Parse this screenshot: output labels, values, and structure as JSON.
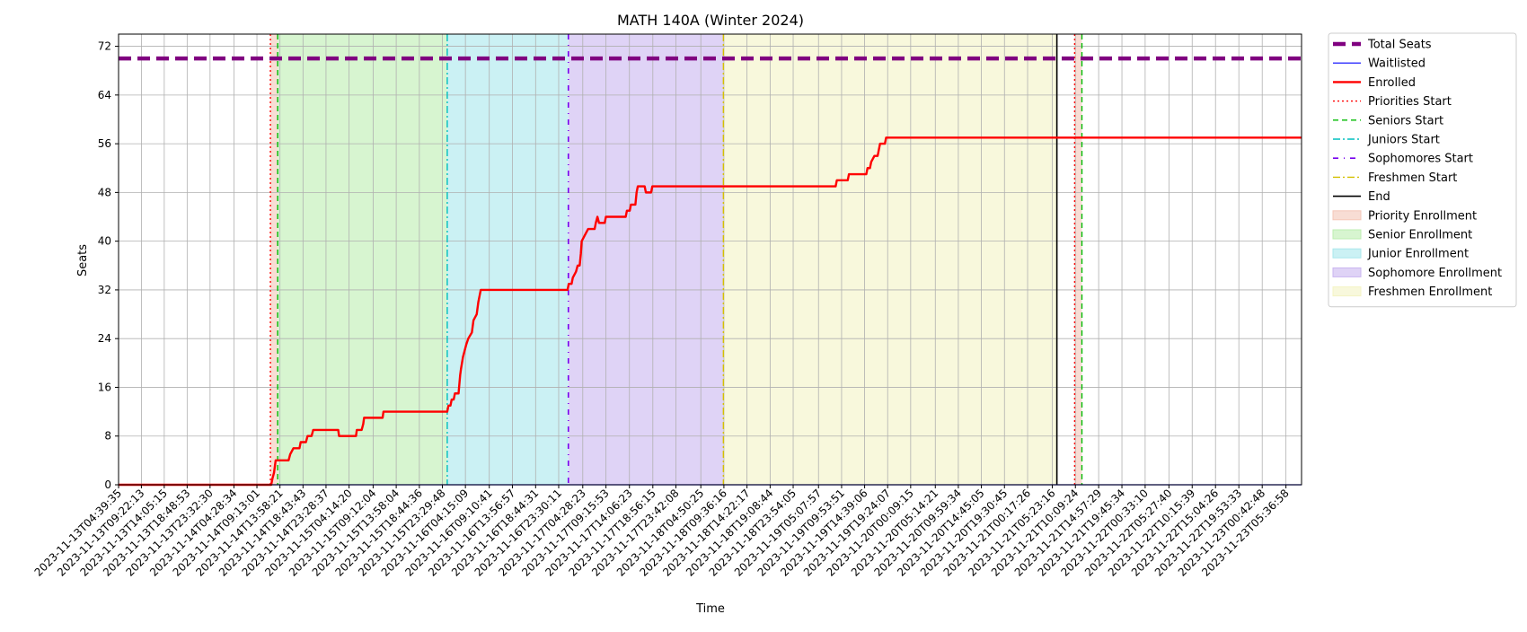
{
  "chart_data": {
    "type": "line",
    "title": "MATH 140A (Winter 2024)",
    "xlabel": "Time",
    "ylabel": "Seats",
    "ylim": [
      0,
      74
    ],
    "yticks": [
      0,
      8,
      16,
      24,
      32,
      40,
      48,
      56,
      64,
      72
    ],
    "grid": true,
    "legend_position": "outside right, top",
    "x_range": [
      "2023-11-13T04:39:35",
      "2023-11-23T08:50:00"
    ],
    "xtick_labels": [
      "2023-11-13T04:39:35",
      "2023-11-13T09:22:13",
      "2023-11-13T14:05:15",
      "2023-11-13T18:48:53",
      "2023-11-13T23:32:30",
      "2023-11-14T04:28:34",
      "2023-11-14T09:13:01",
      "2023-11-14T13:58:21",
      "2023-11-14T18:43:43",
      "2023-11-14T23:28:37",
      "2023-11-15T04:14:20",
      "2023-11-15T09:12:04",
      "2023-11-15T13:58:04",
      "2023-11-15T18:44:36",
      "2023-11-15T23:29:48",
      "2023-11-16T04:15:09",
      "2023-11-16T09:10:41",
      "2023-11-16T13:56:57",
      "2023-11-16T18:44:31",
      "2023-11-16T23:30:11",
      "2023-11-17T04:28:23",
      "2023-11-17T09:15:53",
      "2023-11-17T14:06:23",
      "2023-11-17T18:56:15",
      "2023-11-17T23:42:08",
      "2023-11-18T04:50:25",
      "2023-11-18T09:36:16",
      "2023-11-18T14:22:17",
      "2023-11-18T19:08:44",
      "2023-11-18T23:54:05",
      "2023-11-19T05:07:57",
      "2023-11-19T09:53:51",
      "2023-11-19T14:39:06",
      "2023-11-19T19:24:07",
      "2023-11-20T00:09:15",
      "2023-11-20T05:14:21",
      "2023-11-20T09:59:34",
      "2023-11-20T14:45:05",
      "2023-11-20T19:30:45",
      "2023-11-21T00:17:26",
      "2023-11-21T05:23:16",
      "2023-11-21T10:09:24",
      "2023-11-21T14:57:29",
      "2023-11-21T19:45:34",
      "2023-11-22T00:33:10",
      "2023-11-22T05:27:40",
      "2023-11-22T10:15:39",
      "2023-11-22T15:04:26",
      "2023-11-22T19:53:33",
      "2023-11-23T00:42:48",
      "2023-11-23T05:36:58"
    ],
    "series": [
      {
        "name": "Total Seats",
        "color": "#800080",
        "style": "dashed-thick",
        "points": [
          [
            "2023-11-13T04:39:35",
            70
          ],
          [
            "2023-11-23T08:50:00",
            70
          ]
        ]
      },
      {
        "name": "Waitlisted",
        "color": "#0000ff",
        "style": "solid-thin",
        "points": [
          [
            "2023-11-13T04:39:35",
            0
          ],
          [
            "2023-11-23T08:50:00",
            0
          ]
        ]
      },
      {
        "name": "Enrolled",
        "color": "#ff0000",
        "style": "solid-thick",
        "points": [
          [
            "2023-11-13T04:39:35",
            0
          ],
          [
            "2023-11-14T12:10:00",
            0
          ],
          [
            "2023-11-14T12:25:00",
            1
          ],
          [
            "2023-11-14T12:45:00",
            2
          ],
          [
            "2023-11-14T13:05:00",
            4
          ],
          [
            "2023-11-14T15:45:00",
            4
          ],
          [
            "2023-11-14T16:05:00",
            5
          ],
          [
            "2023-11-14T16:45:00",
            6
          ],
          [
            "2023-11-14T18:00:00",
            6
          ],
          [
            "2023-11-14T18:15:00",
            7
          ],
          [
            "2023-11-14T19:20:00",
            7
          ],
          [
            "2023-11-14T19:40:00",
            8
          ],
          [
            "2023-11-14T20:30:00",
            8
          ],
          [
            "2023-11-14T20:50:00",
            9
          ],
          [
            "2023-11-15T02:00:00",
            9
          ],
          [
            "2023-11-15T02:10:00",
            8
          ],
          [
            "2023-11-15T05:40:00",
            8
          ],
          [
            "2023-11-15T05:50:00",
            9
          ],
          [
            "2023-11-15T06:50:00",
            9
          ],
          [
            "2023-11-15T07:10:00",
            10
          ],
          [
            "2023-11-15T07:20:00",
            11
          ],
          [
            "2023-11-15T11:10:00",
            11
          ],
          [
            "2023-11-15T11:20:00",
            12
          ],
          [
            "2023-11-16T00:30:00",
            12
          ],
          [
            "2023-11-16T00:45:00",
            13
          ],
          [
            "2023-11-16T01:10:00",
            13
          ],
          [
            "2023-11-16T01:25:00",
            14
          ],
          [
            "2023-11-16T01:50:00",
            14
          ],
          [
            "2023-11-16T02:05:00",
            15
          ],
          [
            "2023-11-16T02:50:00",
            15
          ],
          [
            "2023-11-16T03:10:00",
            18
          ],
          [
            "2023-11-16T03:20:00",
            19
          ],
          [
            "2023-11-16T03:45:00",
            21
          ],
          [
            "2023-11-16T04:05:00",
            22
          ],
          [
            "2023-11-16T04:25:00",
            23
          ],
          [
            "2023-11-16T04:50:00",
            24
          ],
          [
            "2023-11-16T05:35:00",
            25
          ],
          [
            "2023-11-16T05:55:00",
            27
          ],
          [
            "2023-11-16T06:35:00",
            28
          ],
          [
            "2023-11-16T06:55:00",
            30
          ],
          [
            "2023-11-16T07:10:00",
            31
          ],
          [
            "2023-11-16T07:25:00",
            32
          ],
          [
            "2023-11-17T01:20:00",
            32
          ],
          [
            "2023-11-17T01:35:00",
            33
          ],
          [
            "2023-11-17T02:10:00",
            33
          ],
          [
            "2023-11-17T02:25:00",
            34
          ],
          [
            "2023-11-17T03:05:00",
            35
          ],
          [
            "2023-11-17T03:25:00",
            36
          ],
          [
            "2023-11-17T03:50:00",
            36
          ],
          [
            "2023-11-17T04:05:00",
            38
          ],
          [
            "2023-11-17T04:15:00",
            40
          ],
          [
            "2023-11-17T04:55:00",
            41
          ],
          [
            "2023-11-17T05:35:00",
            42
          ],
          [
            "2023-11-17T06:55:00",
            42
          ],
          [
            "2023-11-17T07:10:00",
            43
          ],
          [
            "2023-11-17T07:30:00",
            44
          ],
          [
            "2023-11-17T07:50:00",
            43
          ],
          [
            "2023-11-17T09:00:00",
            43
          ],
          [
            "2023-11-17T09:15:00",
            44
          ],
          [
            "2023-11-17T11:40:00",
            44
          ],
          [
            "2023-11-17T12:10:00",
            44
          ],
          [
            "2023-11-17T13:20:00",
            44
          ],
          [
            "2023-11-17T13:35:00",
            45
          ],
          [
            "2023-11-17T14:10:00",
            45
          ],
          [
            "2023-11-17T14:25:00",
            46
          ],
          [
            "2023-11-17T15:20:00",
            46
          ],
          [
            "2023-11-17T15:35:00",
            48
          ],
          [
            "2023-11-17T15:50:00",
            49
          ],
          [
            "2023-11-17T17:15:00",
            49
          ],
          [
            "2023-11-17T17:30:00",
            48
          ],
          [
            "2023-11-17T18:35:00",
            48
          ],
          [
            "2023-11-17T18:50:00",
            49
          ],
          [
            "2023-11-19T08:40:00",
            49
          ],
          [
            "2023-11-19T08:55:00",
            50
          ],
          [
            "2023-11-19T11:10:00",
            50
          ],
          [
            "2023-11-19T11:25:00",
            51
          ],
          [
            "2023-11-19T15:00:00",
            51
          ],
          [
            "2023-11-19T15:15:00",
            52
          ],
          [
            "2023-11-19T15:45:00",
            52
          ],
          [
            "2023-11-19T16:00:00",
            53
          ],
          [
            "2023-11-19T16:40:00",
            54
          ],
          [
            "2023-11-19T17:20:00",
            54
          ],
          [
            "2023-11-19T17:35:00",
            55
          ],
          [
            "2023-11-19T17:50:00",
            56
          ],
          [
            "2023-11-19T18:50:00",
            56
          ],
          [
            "2023-11-19T19:05:00",
            57
          ],
          [
            "2023-11-23T08:50:00",
            57
          ]
        ]
      }
    ],
    "phase_lines": [
      {
        "name": "Priorities Start",
        "color": "#ff0000",
        "style": "dotted",
        "at": [
          "2023-11-14T12:00:00",
          "2023-11-21T10:00:00"
        ]
      },
      {
        "name": "Seniors Start",
        "color": "#00bb00",
        "style": "dashed",
        "at": [
          "2023-11-14T13:30:00",
          "2023-11-21T11:30:00"
        ]
      },
      {
        "name": "Juniors Start",
        "color": "#00bfbf",
        "style": "dashdot",
        "at": [
          "2023-11-16T00:30:00"
        ]
      },
      {
        "name": "Sophomores Start",
        "color": "#7700ee",
        "style": "dashdot-sparse",
        "at": [
          "2023-11-17T01:30:00"
        ]
      },
      {
        "name": "Freshmen Start",
        "color": "#d4c000",
        "style": "dashdot",
        "at": [
          "2023-11-18T09:30:00"
        ]
      },
      {
        "name": "End",
        "color": "#000000",
        "style": "solid",
        "at": [
          "2023-11-21T06:20:00"
        ]
      }
    ],
    "phase_regions": [
      {
        "name": "Priority Enrollment",
        "color": "#f4c7b8",
        "from": "2023-11-14T12:00:00",
        "to": "2023-11-14T13:30:00"
      },
      {
        "name": "Senior Enrollment",
        "color": "#bdeeb0",
        "from": "2023-11-14T13:30:00",
        "to": "2023-11-16T00:30:00"
      },
      {
        "name": "Junior Enrollment",
        "color": "#a9e8ec",
        "from": "2023-11-16T00:30:00",
        "to": "2023-11-17T01:30:00"
      },
      {
        "name": "Sophomore Enrollment",
        "color": "#cab6f0",
        "from": "2023-11-17T01:30:00",
        "to": "2023-11-18T09:30:00"
      },
      {
        "name": "Freshmen Enrollment",
        "color": "#f4f4c4",
        "from": "2023-11-18T09:30:00",
        "to": "2023-11-21T06:20:00"
      },
      {
        "name": "Priority Enrollment",
        "color": "#f4c7b8",
        "from": "2023-11-21T10:00:00",
        "to": "2023-11-21T11:30:00",
        "legend": false
      }
    ],
    "legend": [
      {
        "label": "Total Seats",
        "kind": "line",
        "color": "#800080",
        "style": "dashed-thick"
      },
      {
        "label": "Waitlisted",
        "kind": "line",
        "color": "#0000ff",
        "style": "solid-thin"
      },
      {
        "label": "Enrolled",
        "kind": "line",
        "color": "#ff0000",
        "style": "solid-thick"
      },
      {
        "label": "Priorities Start",
        "kind": "line",
        "color": "#ff0000",
        "style": "dotted"
      },
      {
        "label": "Seniors Start",
        "kind": "line",
        "color": "#00bb00",
        "style": "dashed"
      },
      {
        "label": "Juniors Start",
        "kind": "line",
        "color": "#00bfbf",
        "style": "dashdot"
      },
      {
        "label": "Sophomores Start",
        "kind": "line",
        "color": "#7700ee",
        "style": "dashdot-sparse"
      },
      {
        "label": "Freshmen Start",
        "kind": "line",
        "color": "#d4c000",
        "style": "dashdot"
      },
      {
        "label": "End",
        "kind": "line",
        "color": "#000000",
        "style": "solid"
      },
      {
        "label": "Priority Enrollment",
        "kind": "patch",
        "color": "#f4c7b8"
      },
      {
        "label": "Senior Enrollment",
        "kind": "patch",
        "color": "#bdeeb0"
      },
      {
        "label": "Junior Enrollment",
        "kind": "patch",
        "color": "#a9e8ec"
      },
      {
        "label": "Sophomore Enrollment",
        "kind": "patch",
        "color": "#cab6f0"
      },
      {
        "label": "Freshmen Enrollment",
        "kind": "patch",
        "color": "#f4f4c4"
      }
    ]
  }
}
